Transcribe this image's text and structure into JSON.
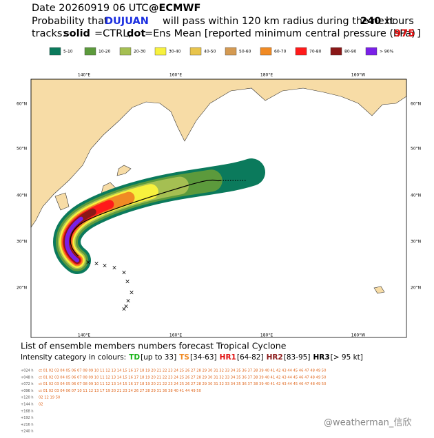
{
  "header": {
    "line1": [
      "Date 20260919 06 UTC",
      "@ECMWF"
    ],
    "line2": [
      "Probability that",
      "DUJUAN",
      "will pass within 120 km radius during the next",
      "240",
      "hours"
    ],
    "line3": [
      "tracks:",
      "solid",
      "=CTRL;",
      "dot",
      "=Ens Mean [reported minimum central pressure (hPa)",
      "975",
      "]"
    ]
  },
  "legend": [
    {
      "label": "5-10",
      "color": "#0b7a5c"
    },
    {
      "label": "10-20",
      "color": "#5c9a3c"
    },
    {
      "label": "20-30",
      "color": "#a5bf52"
    },
    {
      "label": "30-40",
      "color": "#f7f13e"
    },
    {
      "label": "40-50",
      "color": "#e8c44c"
    },
    {
      "label": "50-60",
      "color": "#d49a52"
    },
    {
      "label": "60-70",
      "color": "#f08a24"
    },
    {
      "label": "70-80",
      "color": "#ff1a1a"
    },
    {
      "label": "80-90",
      "color": "#8a1818"
    },
    {
      "label": "> 90%",
      "color": "#7a20e8"
    }
  ],
  "map": {
    "lon_labels": [
      "140°E",
      "160°E",
      "180°E",
      "160°W"
    ],
    "lat_labels": [
      "60°N",
      "50°N",
      "40°N",
      "30°N",
      "20°N"
    ]
  },
  "members": {
    "title": "List of ensemble members numbers forecast Tropical Cyclone",
    "intensity": [
      "Intensity category in colours:",
      "TD",
      "[up to 33]",
      "TS",
      "[34-63]",
      "HR1",
      "[64-82]",
      "HR2",
      "[83-95]",
      "HR3",
      "[> 95 kt]"
    ],
    "rows": [
      {
        "label": "+024 h",
        "members": "ct 01 02 03 04 05 06 07 08 09 10 11 12 13 14 15 16 17 18 19 20 21 22 23 24 25 26 27 28 29 30 31 32 33 34 35 36 37 38 39 40 41 42 43 44 45 46 47 48 49 50"
      },
      {
        "label": "+048 h",
        "members": "ct 01 02 03 04 05 06 07 08 09 10 11 12 13 14 15 16 17 18 19 20 21 22 23 24 25 26 27 28 29 30 31 32 33 34 35 36 37 38 39 40 41 42 43 44 45 46 47 48 49 50"
      },
      {
        "label": "+072 h",
        "members": "ct 01 02 03 04 05 06 07 08 09 10 11 12 13 14 15 16 17 18 19 20 21 22 23 24 25 26 27 28 29 30 31 32 33 34 35 36 37 38 39 40 41 42 43 44 45 46 47 48 49 50"
      },
      {
        "label": "+096 h",
        "members": "ct 01 02 03 04   06 07   10 11 12 13   17   19 20 21   23 24   26 27 28   29   31   36   38 40 41   44   49 50"
      },
      {
        "label": "+120 h",
        "members": "02   12   19   50"
      },
      {
        "label": "+144 h",
        "members": "02"
      },
      {
        "label": "+168 h",
        "members": null
      },
      {
        "label": "+192 h",
        "members": null
      },
      {
        "label": "+216 h",
        "members": null
      },
      {
        "label": "+240 h",
        "members": null
      }
    ]
  },
  "watermark": "@weatherman_信欣"
}
